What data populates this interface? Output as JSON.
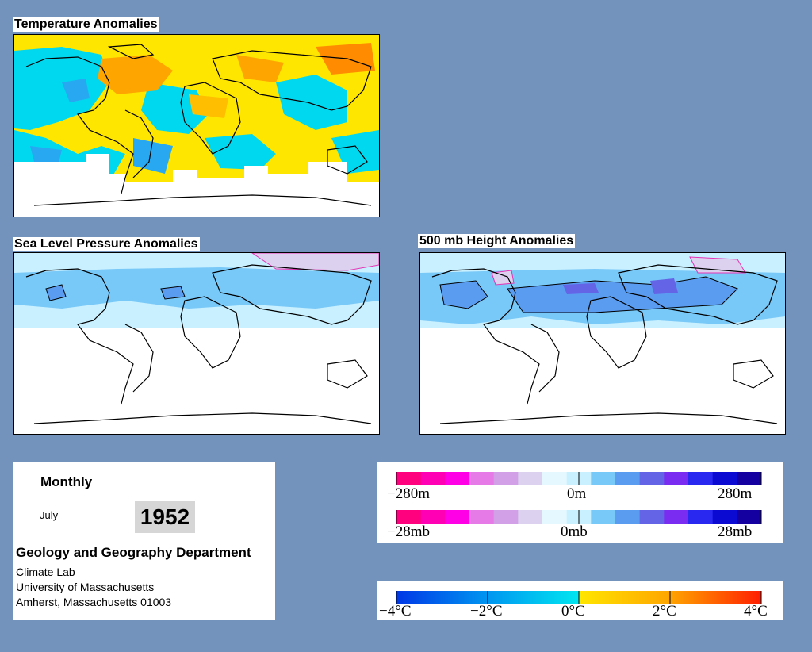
{
  "panels": {
    "temperature": {
      "title": "Temperature Anomalies"
    },
    "slp": {
      "title": "Sea Level Pressure Anomalies"
    },
    "height500": {
      "title": "500 mb Height Anomalies"
    }
  },
  "info": {
    "period": "Monthly",
    "month": "July",
    "year": "1952",
    "department": "Geology and Geography Department",
    "lab": "Climate Lab",
    "university": "University of Massachusetts",
    "address": "Amherst, Massachusetts 01003"
  },
  "legends": {
    "height": {
      "min": "−280m",
      "mid": "0m",
      "max": "280m"
    },
    "pressure": {
      "min": "−28mb",
      "mid": "0mb",
      "max": "28mb"
    },
    "temperature": {
      "labels": [
        "−4°C",
        "−2°C",
        "0°C",
        "2°C",
        "4°C"
      ]
    }
  },
  "colors": {
    "background": "#7393bd",
    "anomaly_positive_scale": [
      "#ff007f",
      "#ff00b4",
      "#ff00e6",
      "#e67ae6",
      "#d2a0e6",
      "#dcd2f0",
      "#e6f8ff",
      "#c8f0ff",
      "#78c8f8",
      "#5a9cf0",
      "#6464e6",
      "#7a2df0",
      "#2828f0",
      "#0a0ad2",
      "#1400a0"
    ],
    "temperature_scale": [
      "#0037e6",
      "#0096f0",
      "#00e6f0",
      "#ffe600",
      "#ffa500",
      "#ff1e00"
    ]
  }
}
